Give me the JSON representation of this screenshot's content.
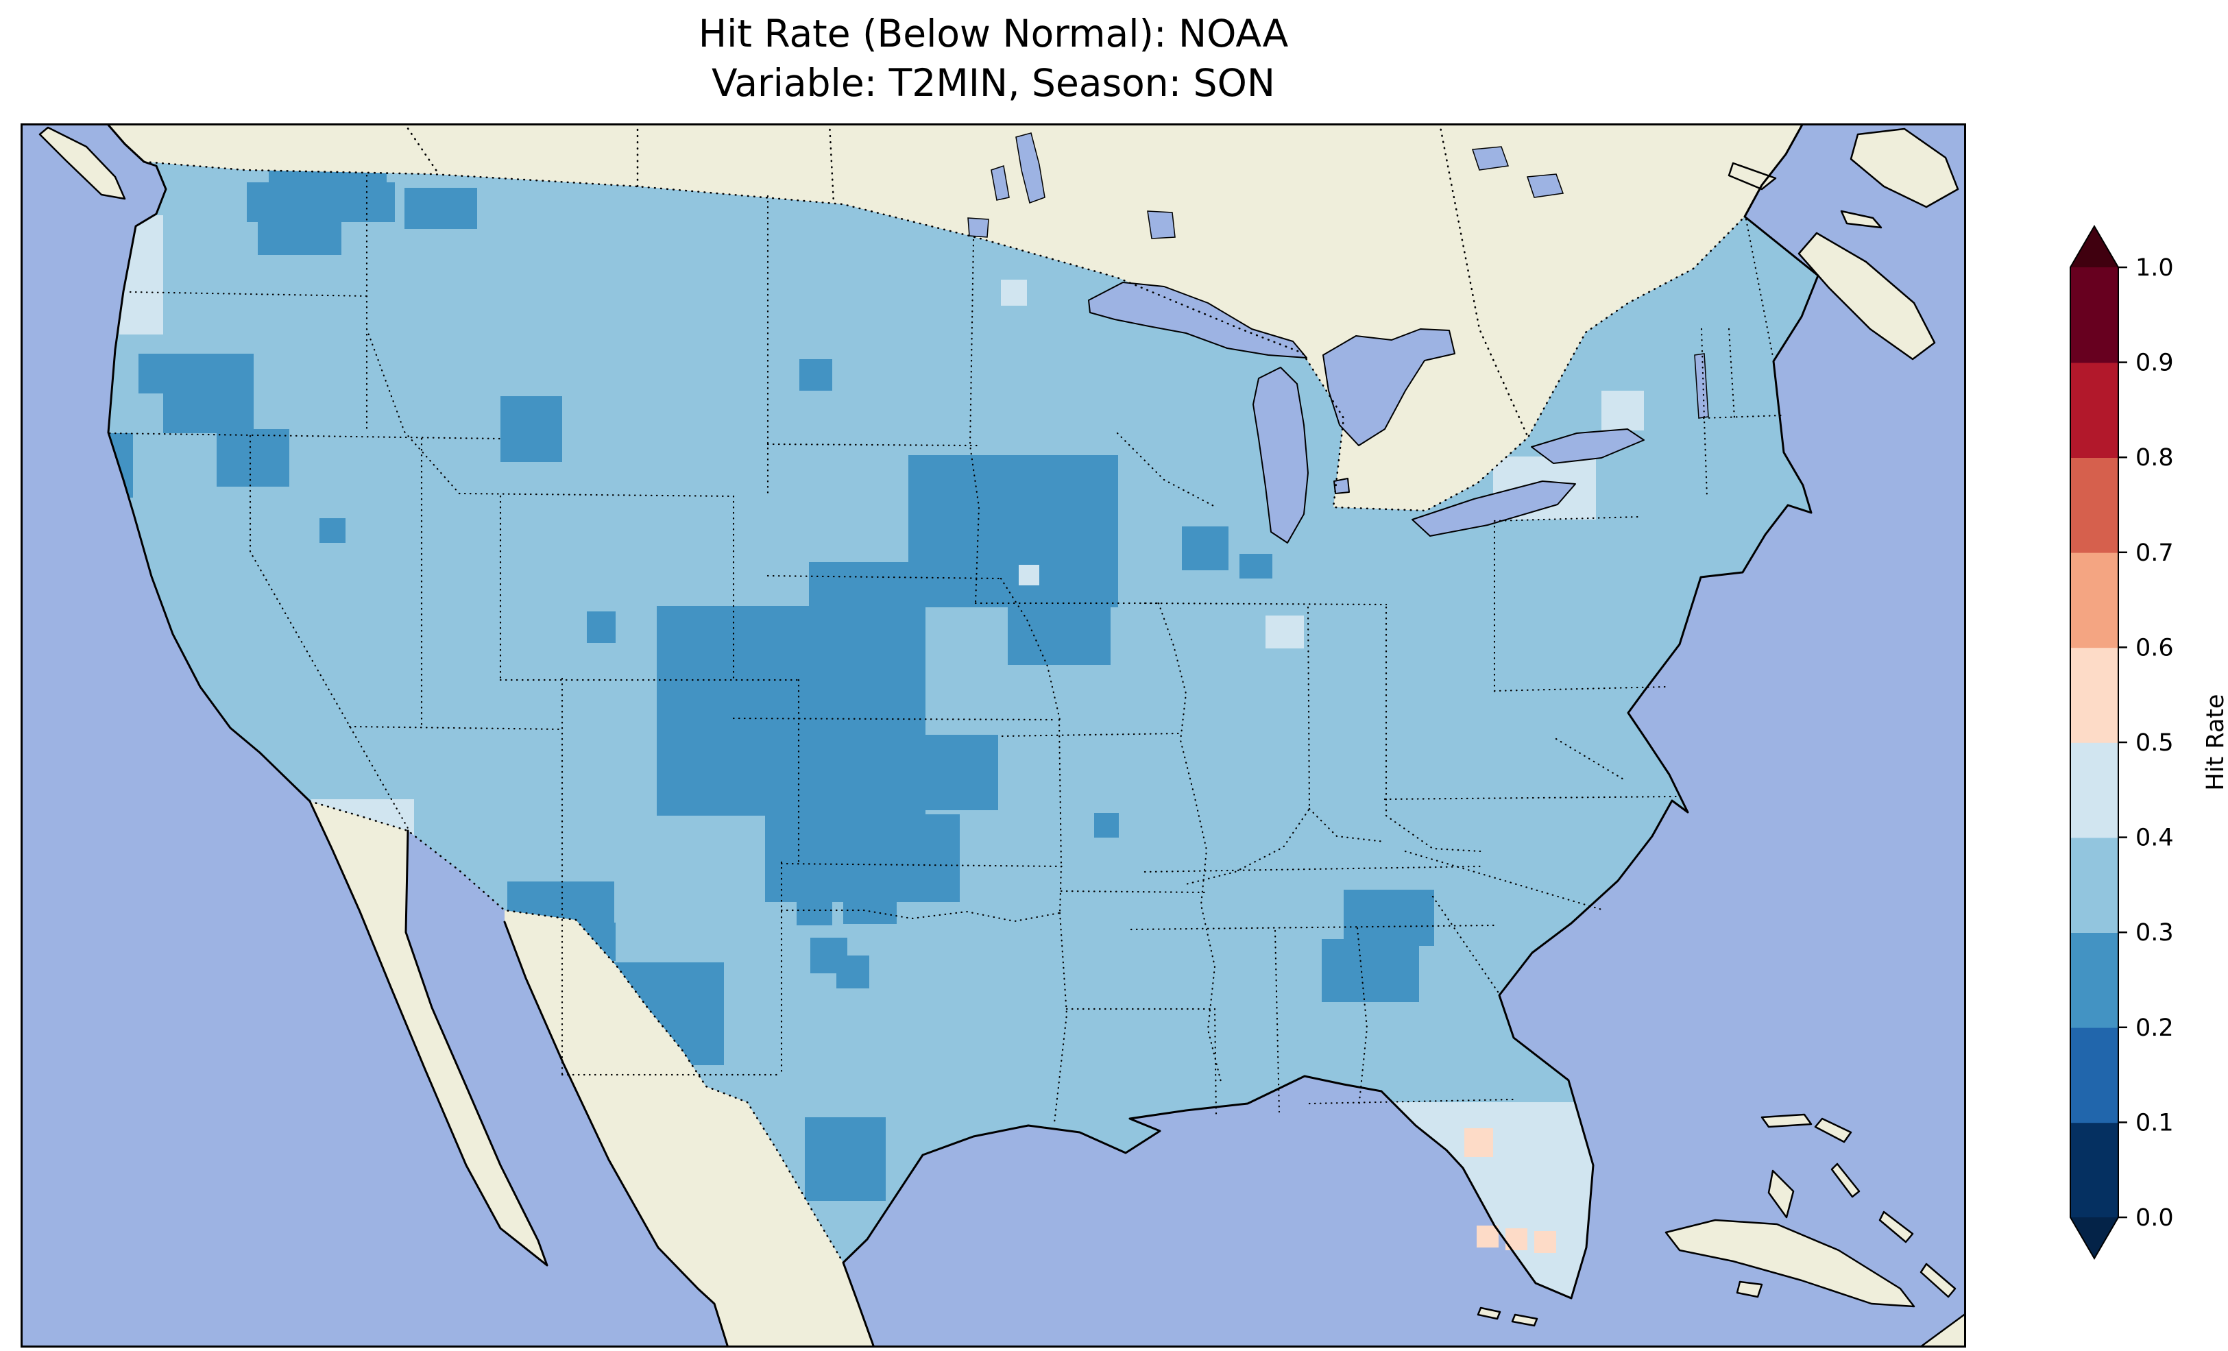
{
  "title": {
    "line1": "Hit Rate (Below Normal): NOAA",
    "line2": "Variable: T2MIN, Season: SON"
  },
  "colorbar": {
    "label": "Hit Rate",
    "tick_labels": [
      "1.0",
      "0.9",
      "0.8",
      "0.7",
      "0.6",
      "0.5",
      "0.4",
      "0.3",
      "0.2",
      "0.1",
      "0.0"
    ],
    "segments": [
      "#053061",
      "#2166ac",
      "#4393c3",
      "#92c5de",
      "#d1e5f0",
      "#fddbc7",
      "#f4a582",
      "#d6604d",
      "#b2182b",
      "#67001f"
    ],
    "extend_under": "#042348",
    "extend_over": "#40000f"
  },
  "colors": {
    "ocean": "#9db3e3",
    "land": "#efeedb",
    "lake": "#9db3e3",
    "us_base": "#92c5de",
    "bin_02_03": "#4393c3",
    "bin_04_05": "#d1e5f0",
    "bin_05_06": "#fddbc7",
    "frame": "#000000"
  },
  "chart_data": {
    "type": "heatmap",
    "subtype": "geographic_gridded_map",
    "title": "Hit Rate (Below Normal): NOAA",
    "subtitle": "Variable: T2MIN, Season: SON",
    "dataset": "NOAA",
    "metric": "Hit Rate (Below Normal)",
    "variable": "T2MIN",
    "season": "SON",
    "region": "Continental United States",
    "colorbar_label": "Hit Rate",
    "color_scale": {
      "type": "discrete",
      "min": 0.0,
      "max": 1.0,
      "bin_width": 0.1,
      "colormap": "RdBu_r",
      "extend": "both",
      "tick_values": [
        0.0,
        0.1,
        0.2,
        0.3,
        0.4,
        0.5,
        0.6,
        0.7,
        0.8,
        0.9,
        1.0
      ]
    },
    "legend_position": "right",
    "observed_values": [
      {
        "region": "Most of the continental US",
        "hit_rate": "0.3-0.4"
      },
      {
        "region": "Central Plains (Nebraska, Kansas, Iowa, NW Missouri, Oklahoma)",
        "hit_rate": "0.2-0.3"
      },
      {
        "region": "Northern Idaho / western Montana",
        "hit_rate": "0.2-0.3"
      },
      {
        "region": "North-central Washington",
        "hit_rate": "0.2-0.3"
      },
      {
        "region": "Southwest Idaho / northern Nevada",
        "hit_rate": "0.2-0.3"
      },
      {
        "region": "Bighorn area (Montana/Wyoming border)",
        "hit_rate": "0.2-0.3"
      },
      {
        "region": "West Texas and Big Bend",
        "hit_rate": "0.2-0.3"
      },
      {
        "region": "South Texas",
        "hit_rate": "0.2-0.3"
      },
      {
        "region": "Central Georgia",
        "hit_rate": "0.2-0.3"
      },
      {
        "region": "Southern Wisconsin / SW Michigan",
        "hit_rate": "0.2-0.3"
      },
      {
        "region": "Oregon coast",
        "hit_rate": "0.4-0.5"
      },
      {
        "region": "Southwest New Mexico / southeast Arizona",
        "hit_rate": "0.4-0.5"
      },
      {
        "region": "Lake Erie shore / western New York",
        "hit_rate": "0.4-0.5"
      },
      {
        "region": "Central Ohio cell",
        "hit_rate": "0.4-0.5"
      },
      {
        "region": "Florida peninsula",
        "hit_rate": "0.4-0.5"
      },
      {
        "region": "South Florida scattered cells",
        "hit_rate": "0.5-0.6"
      }
    ]
  }
}
